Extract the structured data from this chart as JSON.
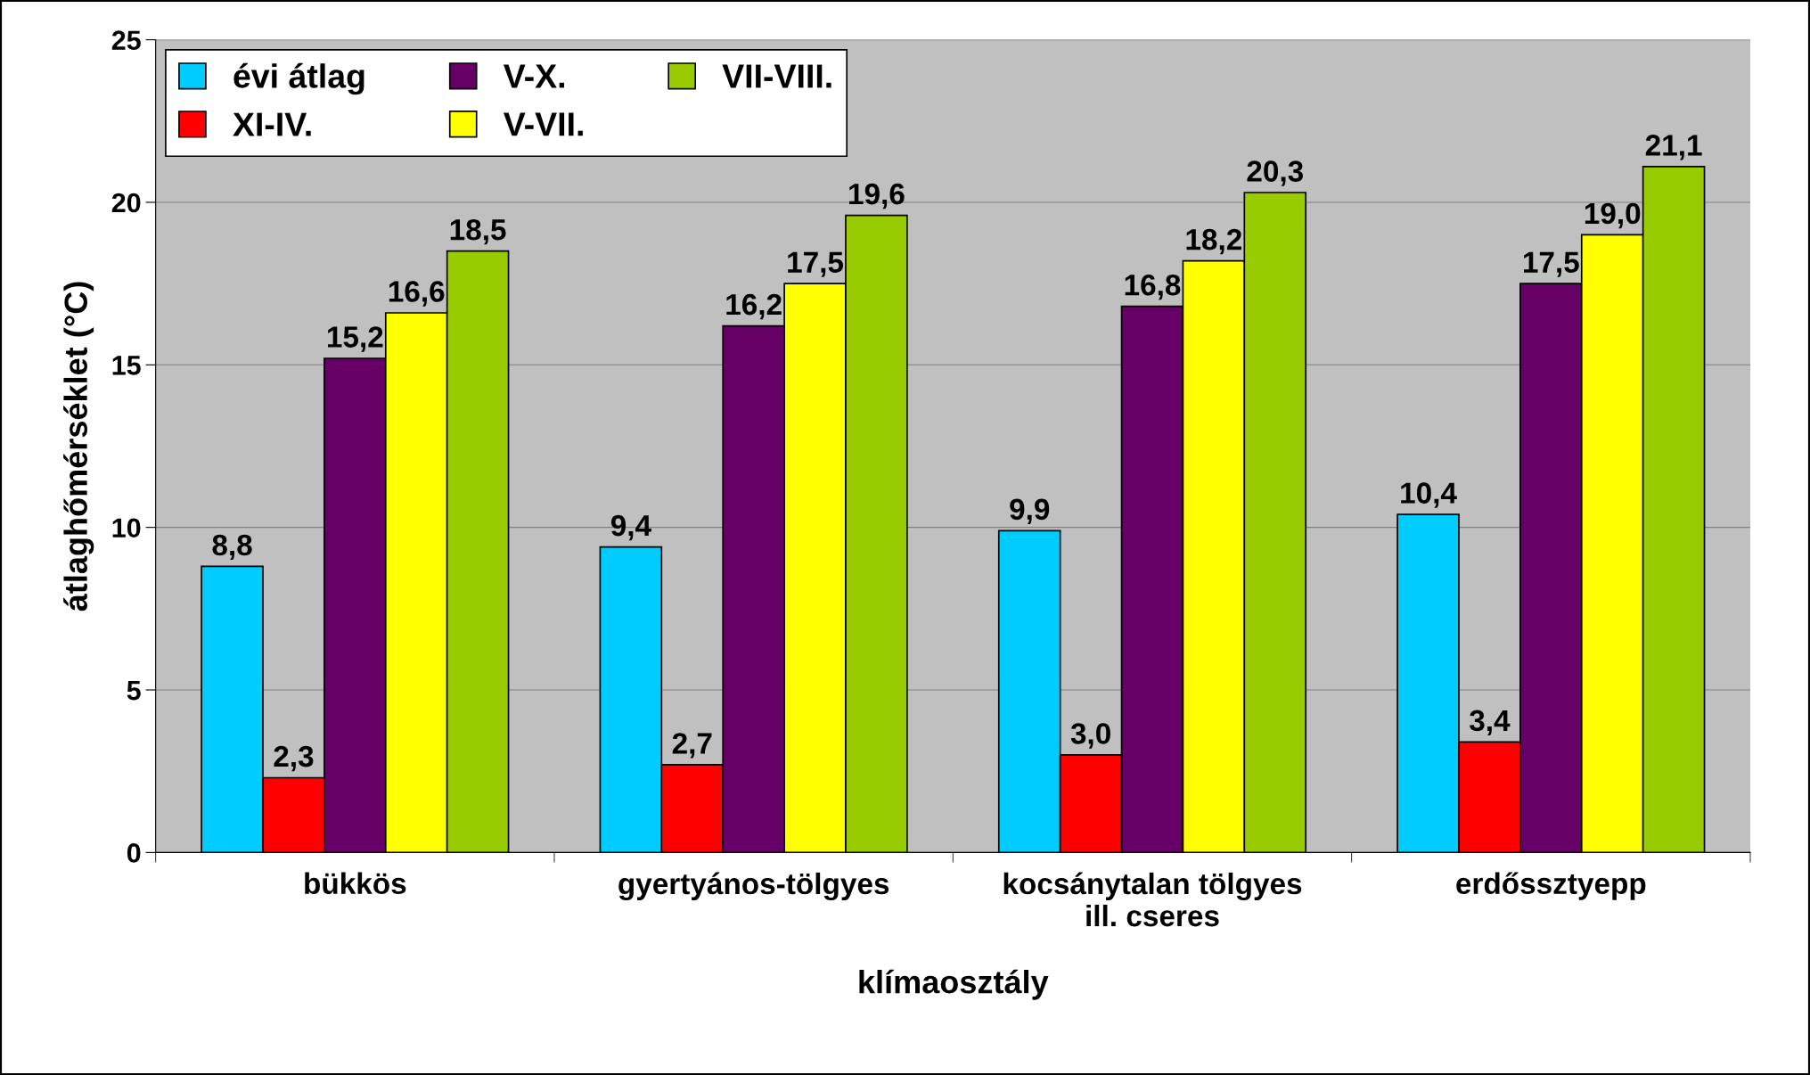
{
  "chart_data": {
    "type": "bar",
    "xlabel": "klímaosztály",
    "ylabel": "átlaghőmérséklet (°C)",
    "categories": [
      "bükkös",
      "gyertyános-tölgyes",
      "kocsánytalan tölgyes\nill. cseres",
      "erdőssztyepp"
    ],
    "series": [
      {
        "name": "évi átlag",
        "color": "#00ccff",
        "values": [
          8.8,
          9.4,
          9.9,
          10.4
        ],
        "value_labels": [
          "8,8",
          "9,4",
          "9,9",
          "10,4"
        ]
      },
      {
        "name": "XI-IV.",
        "color": "#ff0000",
        "values": [
          2.3,
          2.7,
          3.0,
          3.4
        ],
        "value_labels": [
          "2,3",
          "2,7",
          "3,0",
          "3,4"
        ]
      },
      {
        "name": "V-X.",
        "color": "#660066",
        "values": [
          15.2,
          16.2,
          16.8,
          17.5
        ],
        "value_labels": [
          "15,2",
          "16,2",
          "16,8",
          "17,5"
        ]
      },
      {
        "name": "V-VII.",
        "color": "#ffff00",
        "values": [
          16.6,
          17.5,
          18.2,
          19.0
        ],
        "value_labels": [
          "16,6",
          "17,5",
          "18,2",
          "19,0"
        ]
      },
      {
        "name": "VII-VIII.",
        "color": "#99cc00",
        "values": [
          18.5,
          19.6,
          20.3,
          21.1
        ],
        "value_labels": [
          "18,5",
          "19,6",
          "20,3",
          "21,1"
        ]
      }
    ],
    "ylim": [
      0,
      25
    ],
    "yticks": [
      0,
      5,
      10,
      15,
      20,
      25
    ],
    "grid": "y",
    "legend": "top left"
  }
}
